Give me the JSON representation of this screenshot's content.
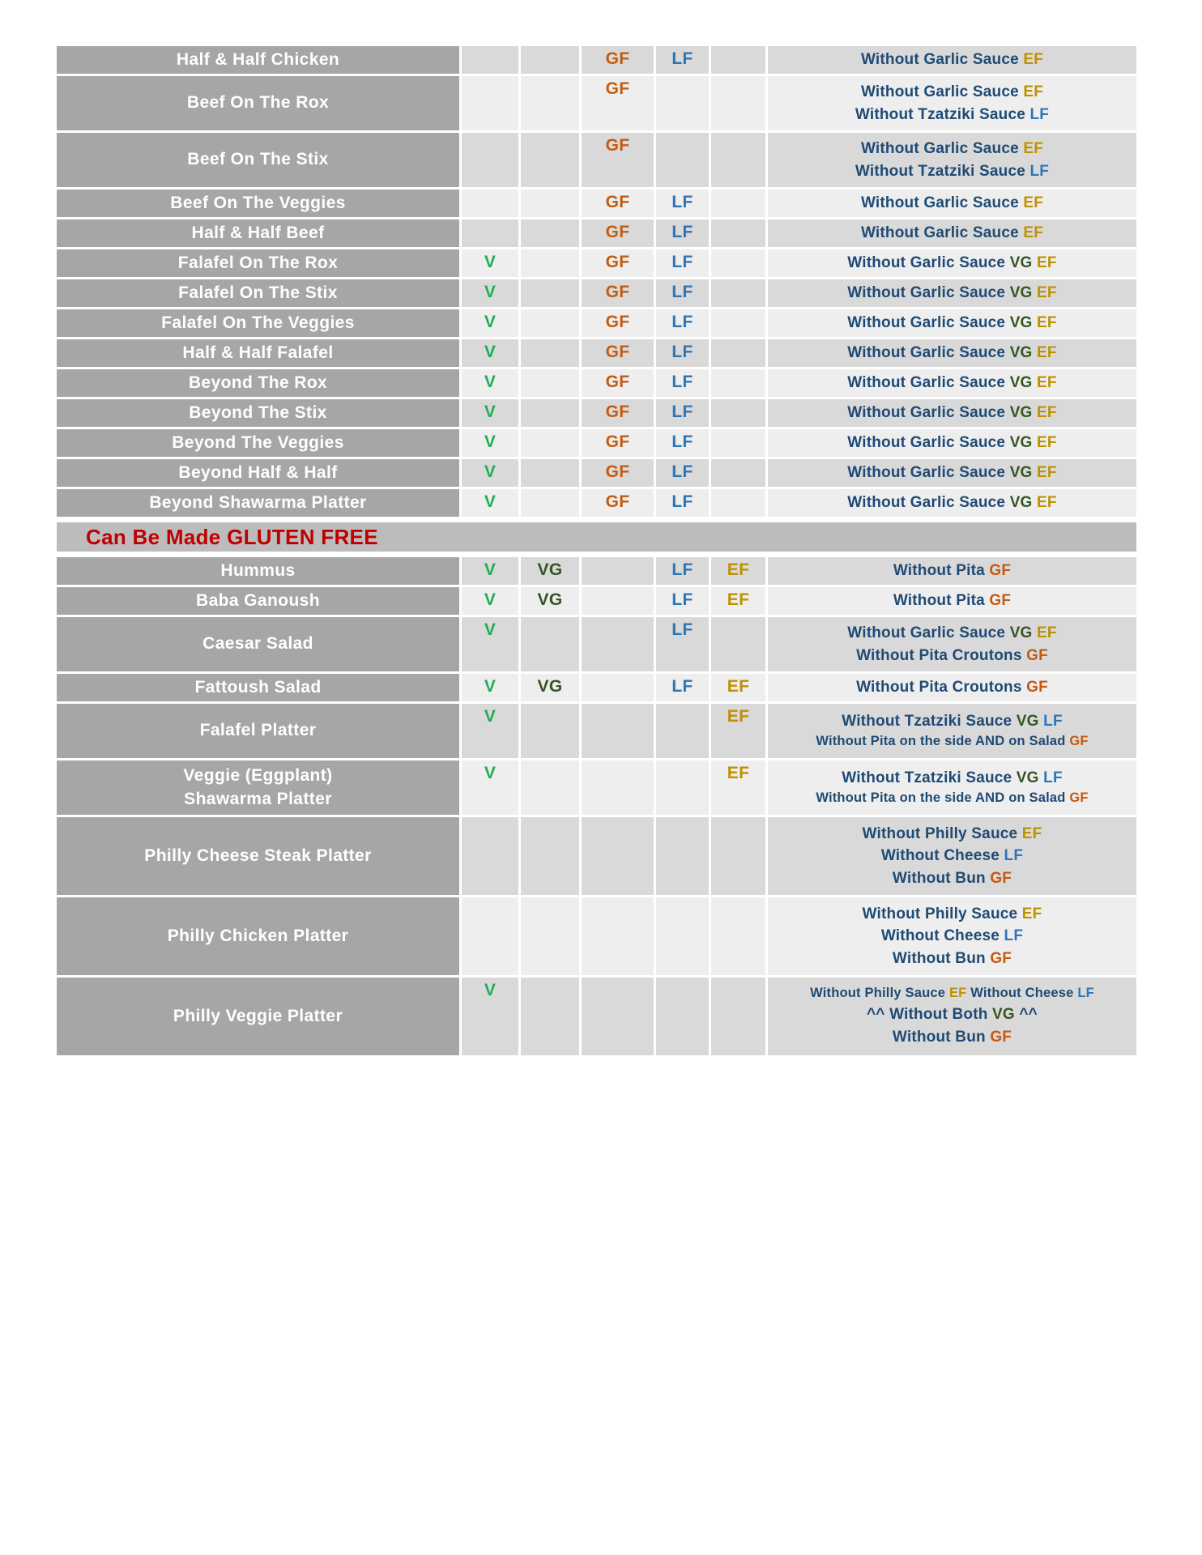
{
  "colors": {
    "mark_v": "#1FAD54",
    "mark_vg": "#375623",
    "mark_gf": "#C55A11",
    "mark_lf": "#2E75B6",
    "mark_ef": "#BF9000",
    "note_text": "#1F4A74",
    "section_text": "#C00000",
    "name_bg": "#A6A6A6",
    "name_text": "#FFFFFF",
    "row_dark_bg": "#D9D9D9",
    "row_light_bg": "#EEEEEE",
    "section_bg": "#BCBCBC"
  },
  "table": {
    "mark_columns": [
      "V",
      "VG",
      "GF",
      "LF",
      "EF"
    ],
    "rows": [
      {
        "name": "Half & Half Chicken",
        "marks": [
          "GF",
          "LF"
        ],
        "notes": [
          {
            "segments": [
              {
                "text": "Without Garlic Sauce "
              },
              {
                "mark": "EF"
              }
            ]
          }
        ]
      },
      {
        "name": "Beef On The Rox",
        "marks": [
          "GF"
        ],
        "notes": [
          {
            "segments": [
              {
                "text": "Without Garlic Sauce "
              },
              {
                "mark": "EF"
              }
            ]
          },
          {
            "segments": [
              {
                "text": "Without Tzatziki Sauce "
              },
              {
                "mark": "LF"
              }
            ]
          }
        ]
      },
      {
        "name": "Beef On The Stix",
        "marks": [
          "GF"
        ],
        "notes": [
          {
            "segments": [
              {
                "text": "Without Garlic Sauce "
              },
              {
                "mark": "EF"
              }
            ]
          },
          {
            "segments": [
              {
                "text": "Without Tzatziki Sauce "
              },
              {
                "mark": "LF"
              }
            ]
          }
        ]
      },
      {
        "name": "Beef On The Veggies",
        "marks": [
          "GF",
          "LF"
        ],
        "notes": [
          {
            "segments": [
              {
                "text": "Without Garlic Sauce "
              },
              {
                "mark": "EF"
              }
            ]
          }
        ]
      },
      {
        "name": "Half & Half Beef",
        "marks": [
          "GF",
          "LF"
        ],
        "notes": [
          {
            "segments": [
              {
                "text": "Without Garlic Sauce "
              },
              {
                "mark": "EF"
              }
            ]
          }
        ]
      },
      {
        "name": "Falafel On The Rox",
        "marks": [
          "V",
          "GF",
          "LF"
        ],
        "notes": [
          {
            "segments": [
              {
                "text": "Without Garlic Sauce "
              },
              {
                "mark": "VG"
              },
              {
                "text": " "
              },
              {
                "mark": "EF"
              }
            ]
          }
        ]
      },
      {
        "name": "Falafel On The Stix",
        "marks": [
          "V",
          "GF",
          "LF"
        ],
        "notes": [
          {
            "segments": [
              {
                "text": "Without Garlic Sauce "
              },
              {
                "mark": "VG"
              },
              {
                "text": " "
              },
              {
                "mark": "EF"
              }
            ]
          }
        ]
      },
      {
        "name": "Falafel On The Veggies",
        "marks": [
          "V",
          "GF",
          "LF"
        ],
        "notes": [
          {
            "segments": [
              {
                "text": "Without Garlic Sauce "
              },
              {
                "mark": "VG"
              },
              {
                "text": " "
              },
              {
                "mark": "EF"
              }
            ]
          }
        ]
      },
      {
        "name": "Half & Half Falafel",
        "marks": [
          "V",
          "GF",
          "LF"
        ],
        "notes": [
          {
            "segments": [
              {
                "text": "Without Garlic Sauce "
              },
              {
                "mark": "VG"
              },
              {
                "text": " "
              },
              {
                "mark": "EF"
              }
            ]
          }
        ]
      },
      {
        "name": "Beyond The Rox",
        "marks": [
          "V",
          "GF",
          "LF"
        ],
        "notes": [
          {
            "segments": [
              {
                "text": "Without Garlic Sauce "
              },
              {
                "mark": "VG"
              },
              {
                "text": " "
              },
              {
                "mark": "EF"
              }
            ]
          }
        ]
      },
      {
        "name": "Beyond The Stix",
        "marks": [
          "V",
          "GF",
          "LF"
        ],
        "notes": [
          {
            "segments": [
              {
                "text": "Without Garlic Sauce "
              },
              {
                "mark": "VG"
              },
              {
                "text": " "
              },
              {
                "mark": "EF"
              }
            ]
          }
        ]
      },
      {
        "name": "Beyond The Veggies",
        "marks": [
          "V",
          "GF",
          "LF"
        ],
        "notes": [
          {
            "segments": [
              {
                "text": "Without Garlic Sauce "
              },
              {
                "mark": "VG"
              },
              {
                "text": " "
              },
              {
                "mark": "EF"
              }
            ]
          }
        ]
      },
      {
        "name": "Beyond Half & Half",
        "marks": [
          "V",
          "GF",
          "LF"
        ],
        "notes": [
          {
            "segments": [
              {
                "text": "Without Garlic Sauce "
              },
              {
                "mark": "VG"
              },
              {
                "text": " "
              },
              {
                "mark": "EF"
              }
            ]
          }
        ]
      },
      {
        "name": "Beyond Shawarma Platter",
        "marks": [
          "V",
          "GF",
          "LF"
        ],
        "notes": [
          {
            "segments": [
              {
                "text": "Without Garlic Sauce "
              },
              {
                "mark": "VG"
              },
              {
                "text": " "
              },
              {
                "mark": "EF"
              }
            ]
          }
        ]
      },
      {
        "section": "Can Be Made GLUTEN FREE"
      },
      {
        "name": "Hummus",
        "marks": [
          "V",
          "VG",
          "LF",
          "EF"
        ],
        "notes": [
          {
            "segments": [
              {
                "text": "Without Pita "
              },
              {
                "mark": "GF"
              }
            ]
          }
        ]
      },
      {
        "name": "Baba Ganoush",
        "marks": [
          "V",
          "VG",
          "LF",
          "EF"
        ],
        "notes": [
          {
            "segments": [
              {
                "text": "Without Pita "
              },
              {
                "mark": "GF"
              }
            ]
          }
        ]
      },
      {
        "name": "Caesar Salad",
        "marks": [
          "V",
          "LF"
        ],
        "notes": [
          {
            "segments": [
              {
                "text": "Without Garlic Sauce "
              },
              {
                "mark": "VG"
              },
              {
                "text": " "
              },
              {
                "mark": "EF"
              }
            ]
          },
          {
            "segments": [
              {
                "text": "Without Pita Croutons "
              },
              {
                "mark": "GF"
              }
            ]
          }
        ]
      },
      {
        "name": "Fattoush Salad",
        "marks": [
          "V",
          "VG",
          "LF",
          "EF"
        ],
        "notes": [
          {
            "segments": [
              {
                "text": "Without Pita Croutons "
              },
              {
                "mark": "GF"
              }
            ]
          }
        ]
      },
      {
        "name": "Falafel Platter",
        "marks": [
          "V",
          "EF"
        ],
        "notes": [
          {
            "segments": [
              {
                "text": "Without Tzatziki Sauce "
              },
              {
                "mark": "VG"
              },
              {
                "text": " "
              },
              {
                "mark": "LF"
              }
            ]
          },
          {
            "small": true,
            "segments": [
              {
                "text": "Without Pita on the side AND on Salad "
              },
              {
                "mark": "GF"
              }
            ]
          }
        ]
      },
      {
        "name": "Veggie (Eggplant)\nShawarma Platter",
        "marks": [
          "V",
          "EF"
        ],
        "notes": [
          {
            "segments": [
              {
                "text": "Without Tzatziki Sauce "
              },
              {
                "mark": "VG"
              },
              {
                "text": " "
              },
              {
                "mark": "LF"
              }
            ]
          },
          {
            "small": true,
            "segments": [
              {
                "text": "Without Pita on the side AND on Salad "
              },
              {
                "mark": "GF"
              }
            ]
          }
        ]
      },
      {
        "name": "Philly Cheese Steak Platter",
        "marks": [],
        "notes": [
          {
            "segments": [
              {
                "text": "Without Philly Sauce "
              },
              {
                "mark": "EF"
              }
            ]
          },
          {
            "segments": [
              {
                "text": "Without Cheese "
              },
              {
                "mark": "LF"
              }
            ]
          },
          {
            "segments": [
              {
                "text": "Without Bun "
              },
              {
                "mark": "GF"
              }
            ]
          }
        ]
      },
      {
        "name": "Philly Chicken Platter",
        "marks": [],
        "notes": [
          {
            "segments": [
              {
                "text": "Without Philly Sauce "
              },
              {
                "mark": "EF"
              }
            ]
          },
          {
            "segments": [
              {
                "text": "Without Cheese "
              },
              {
                "mark": "LF"
              }
            ]
          },
          {
            "segments": [
              {
                "text": "Without Bun "
              },
              {
                "mark": "GF"
              }
            ]
          }
        ]
      },
      {
        "name": "Philly Veggie Platter",
        "marks": [
          "V"
        ],
        "notes": [
          {
            "small": true,
            "segments": [
              {
                "text": "Without Philly Sauce "
              },
              {
                "mark": "EF"
              },
              {
                "text": " Without Cheese "
              },
              {
                "mark": "LF"
              }
            ]
          },
          {
            "segments": [
              {
                "text": "^^ Without Both "
              },
              {
                "mark": "VG"
              },
              {
                "text": " ^^"
              }
            ]
          },
          {
            "segments": [
              {
                "text": "Without Bun "
              },
              {
                "mark": "GF"
              }
            ]
          }
        ]
      }
    ]
  }
}
